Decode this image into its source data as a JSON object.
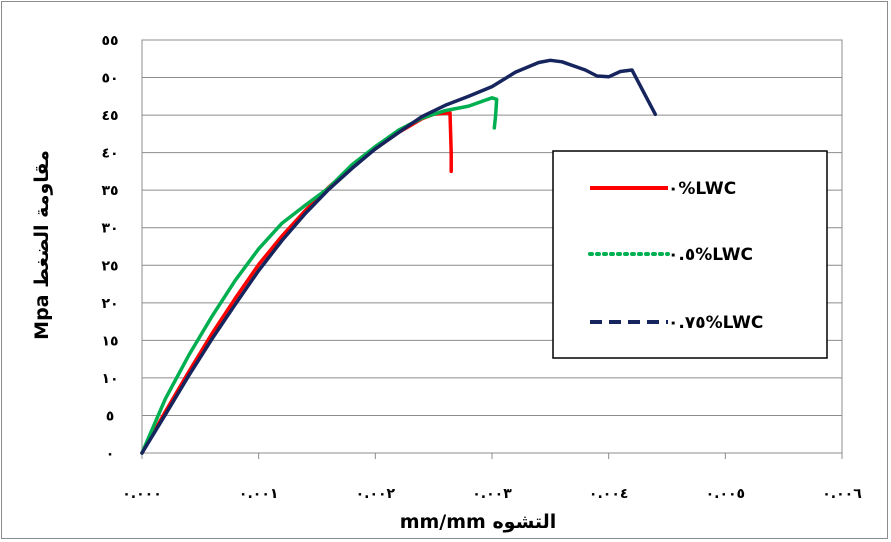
{
  "chart_data": {
    "type": "line",
    "xlabel": "التشوه mm/mm",
    "ylabel": "مقاومة الضغط Mpa",
    "xlim": [
      0,
      0.006
    ],
    "ylim": [
      0,
      55
    ],
    "x_ticks": [
      0,
      0.001,
      0.002,
      0.003,
      0.004,
      0.005,
      0.006
    ],
    "x_tick_labels": [
      "٠.٠٠٠",
      "٠.٠٠١",
      "٠.٠٠٢",
      "٠.٠٠٣",
      "٠.٠٠٤",
      "٠.٠٠٥",
      "٠.٠٠٦"
    ],
    "y_ticks": [
      0,
      5,
      10,
      15,
      20,
      25,
      30,
      35,
      40,
      45,
      50,
      55
    ],
    "y_tick_labels": [
      "٠",
      "٥",
      "١٠",
      "١٥",
      "٢٠",
      "٢٥",
      "٣٠",
      "٣٥",
      "٤٠",
      "٤٥",
      "٥٠",
      "٥٥"
    ],
    "grid": "horizontal",
    "legend_position": "right",
    "series": [
      {
        "name": "٠%LWC",
        "color": "#ff0000",
        "dash": "solid",
        "x": [
          0,
          0.0002,
          0.0004,
          0.0006,
          0.0008,
          0.001,
          0.0012,
          0.0014,
          0.0016,
          0.0018,
          0.002,
          0.0022,
          0.0024,
          0.0025,
          0.00264,
          0.00265,
          0.00265
        ],
        "y": [
          0,
          5.5,
          10.8,
          15.9,
          20.6,
          25.1,
          28.9,
          32.3,
          35.4,
          38.1,
          40.5,
          42.7,
          44.5,
          45.1,
          45.3,
          40,
          37.5
        ]
      },
      {
        "name": "٠.٥%LWC",
        "color": "#00b050",
        "dash": "dotted",
        "x": [
          0,
          0.0002,
          0.0004,
          0.0006,
          0.0008,
          0.001,
          0.0012,
          0.0014,
          0.0016,
          0.0018,
          0.002,
          0.0022,
          0.0024,
          0.0026,
          0.0028,
          0.003,
          0.00304,
          0.00303,
          0.00302
        ],
        "y": [
          0,
          7.2,
          13,
          18.2,
          23,
          27.2,
          30.6,
          33,
          35.3,
          38.4,
          40.8,
          43,
          44.6,
          45.6,
          46.2,
          47.3,
          47.1,
          44.8,
          43.3
        ]
      },
      {
        "name": "٠.٧٥%LWC",
        "color": "#17255e",
        "dash": "dashed",
        "x": [
          0,
          0.0002,
          0.0004,
          0.0006,
          0.0008,
          0.001,
          0.0012,
          0.0014,
          0.0016,
          0.0018,
          0.002,
          0.0022,
          0.0024,
          0.0026,
          0.0028,
          0.003,
          0.0032,
          0.0034,
          0.0035,
          0.0036,
          0.0038,
          0.0039,
          0.004,
          0.0041,
          0.0042,
          0.0044
        ],
        "y": [
          0,
          5.1,
          10.3,
          15.2,
          19.8,
          24.3,
          28.3,
          31.9,
          35.1,
          37.9,
          40.5,
          42.7,
          44.8,
          46.3,
          47.5,
          48.8,
          50.7,
          52,
          52.3,
          52.1,
          51,
          50.2,
          50.1,
          50.8,
          51,
          45.1
        ]
      }
    ]
  }
}
